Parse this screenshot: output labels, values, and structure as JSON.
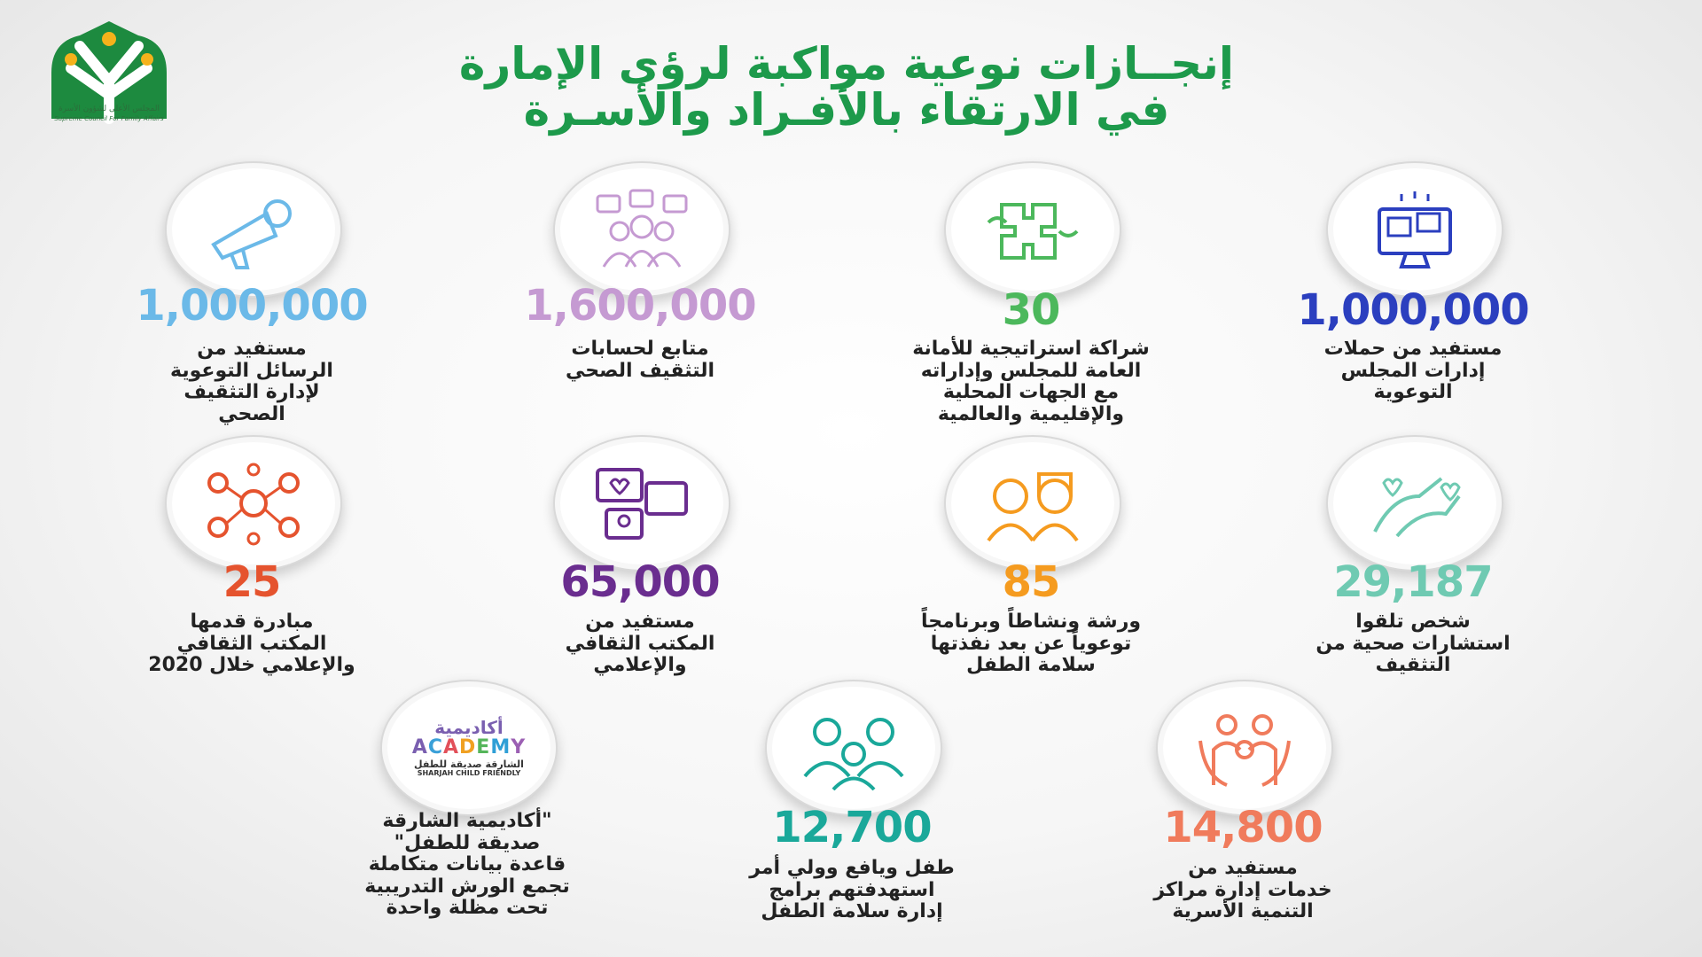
{
  "logo": {
    "text_ar": "المجلس الأعلى لشؤون الأسرة",
    "text_en": "Supreme Council For Family Affairs",
    "color": "#1d8a3f"
  },
  "title": {
    "line1": "إنجــازات نوعية مواكبة لرؤى الإمارة",
    "line2": "في الارتقاء بالأفـراد والأسـرة",
    "color": "#1d9a4b"
  },
  "academy_logo": {
    "ar": "أكاديمية",
    "en": "ACADEMY",
    "sub_ar": "الشارقة صديقة للطفل",
    "sub_en": "SHARJAH CHILD FRIENDLY"
  },
  "cards": [
    {
      "icon": "monitor-chat-icon",
      "number": "1,000,000",
      "color": "#2b3fbf",
      "label": [
        "مستفيد من حملات",
        "إدارات المجلس",
        "التوعوية"
      ]
    },
    {
      "icon": "puzzle-hands-icon",
      "number": "30",
      "color": "#4cb85c",
      "label": [
        "شراكة استراتيجية للأمانة",
        "العامة للمجلس وإداراته",
        "مع الجهات المحلية",
        "والإقليمية والعالمية"
      ]
    },
    {
      "icon": "social-followers-icon",
      "number": "1,600,000",
      "color": "#c59ad2",
      "label": [
        "متابع لحسابات",
        "التثقيف الصحي"
      ]
    },
    {
      "icon": "megaphone-icon",
      "number": "1,000,000",
      "color": "#6bb9e8",
      "label": [
        "مستفيد من",
        "الرسائل التوعوية",
        "لإدارة التثقيف",
        "الصحي"
      ]
    },
    {
      "icon": "caring-hands-icon",
      "number": "29,187",
      "color": "#6fcab2",
      "label": [
        "شخص تلقوا",
        "استشارات صحية من",
        "التثقيف"
      ]
    },
    {
      "icon": "children-icon",
      "number": "85",
      "color": "#f59b1f",
      "label": [
        "ورشة ونشاطاً وبرنامجاً",
        "توعوياً عن بعد نفذتها",
        "سلامة الطفل"
      ]
    },
    {
      "icon": "chat-like-icon",
      "number": "65,000",
      "color": "#6a2d8f",
      "label": [
        "مستفيد من",
        "المكتب الثقافي",
        "والإعلامي"
      ]
    },
    {
      "icon": "network-people-icon",
      "number": "25",
      "color": "#e5532e",
      "label": [
        "مبادرة قدمها",
        "المكتب الثقافي",
        "والإعلامي خلال 2020"
      ]
    },
    {
      "icon": "family-hug-icon",
      "number": "14,800",
      "color": "#f07b5c",
      "label": [
        "مستفيد من",
        "خدمات إدارة مراكز",
        "التنمية الأسرية"
      ]
    },
    {
      "icon": "family-group-icon",
      "number": "12,700",
      "color": "#1aa89a",
      "label": [
        "طفل ويافع وولي أمر",
        "استهدفتهم برامج",
        "إدارة سلامة الطفل"
      ]
    },
    {
      "icon": "academy-logo-icon",
      "number": "",
      "color": "#222222",
      "label": [
        "\"أكاديمية الشارقة",
        "صديقة للطفل\"",
        "قاعدة بيانات متكاملة",
        "تجمع الورش التدريبية",
        "تحت مظلة واحدة"
      ]
    }
  ]
}
